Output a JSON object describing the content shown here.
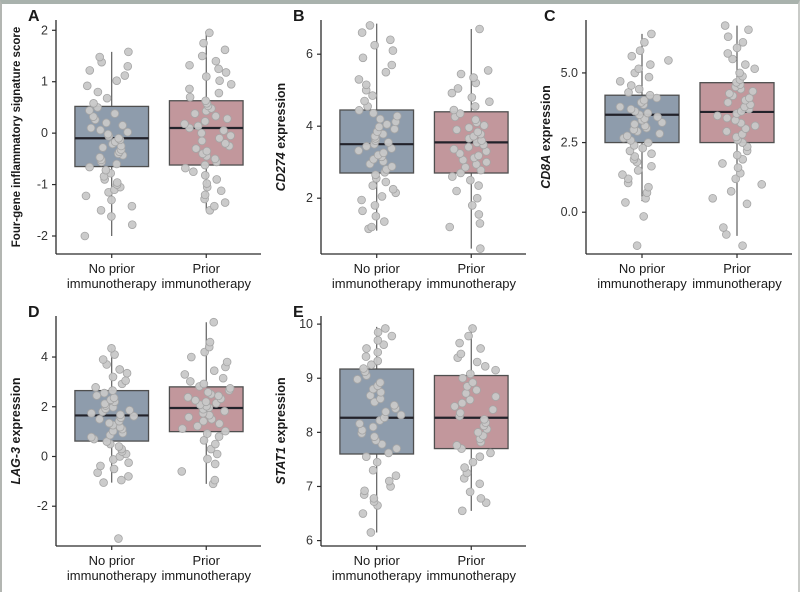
{
  "figure": {
    "frame_top_color": "#a9b2ad",
    "background": "#ffffff"
  },
  "colors": {
    "axis": "#2b2b2b",
    "tick_text": "#333333",
    "label_text": "#1a1a1a",
    "box_border": "#4f4f4f",
    "median": "#22222a",
    "point_fill": "#c8c8c8",
    "point_stroke": "#a5a5a5",
    "no_prior_fill": "#8e9cac",
    "prior_fill": "#c2979c"
  },
  "categories": [
    {
      "line1": "No prior",
      "line2": "immunotherapy"
    },
    {
      "line1": "Prior",
      "line2": "immunotherapy"
    }
  ],
  "chart_data": [
    {
      "panel": "A",
      "type": "box",
      "ylabel": {
        "italic": "",
        "text": "Four-gene inflammatory signature score"
      },
      "yticks": [
        -2,
        -1,
        0,
        1,
        2
      ],
      "ytick_labels": [
        "-2",
        "-1",
        "0",
        "1",
        "2"
      ],
      "ylim": [
        -2.35,
        2.2
      ],
      "series": [
        {
          "name": "No prior immunotherapy",
          "fill": "#8e9cac",
          "box": {
            "min": -2.0,
            "q1": -0.65,
            "median": -0.1,
            "q3": 0.52,
            "max": 1.58
          },
          "points": [
            -2.0,
            -1.78,
            -1.62,
            -1.5,
            -1.42,
            -1.3,
            -1.22,
            -1.15,
            -1.1,
            -1.05,
            -1.0,
            -0.96,
            -0.9,
            -0.84,
            -0.78,
            -0.72,
            -0.66,
            -0.6,
            -0.56,
            -0.52,
            -0.47,
            -0.43,
            -0.4,
            -0.36,
            -0.32,
            -0.28,
            -0.25,
            -0.21,
            -0.17,
            -0.13,
            -0.1,
            -0.06,
            -0.02,
            0.02,
            0.06,
            0.1,
            0.15,
            0.2,
            0.26,
            0.32,
            0.38,
            0.44,
            0.5,
            0.58,
            0.68,
            0.8,
            0.92,
            1.02,
            1.12,
            1.22,
            1.3,
            1.38,
            1.48,
            1.58
          ]
        },
        {
          "name": "Prior immunotherapy",
          "fill": "#c2979c",
          "box": {
            "min": -1.5,
            "q1": -0.62,
            "median": 0.1,
            "q3": 0.63,
            "max": 1.95
          },
          "points": [
            -1.5,
            -1.42,
            -1.35,
            -1.28,
            -1.2,
            -1.12,
            -1.05,
            -0.98,
            -0.9,
            -0.82,
            -0.75,
            -0.68,
            -0.62,
            -0.56,
            -0.5,
            -0.45,
            -0.4,
            -0.35,
            -0.3,
            -0.25,
            -0.2,
            -0.15,
            -0.1,
            -0.05,
            0.0,
            0.05,
            0.1,
            0.14,
            0.18,
            0.23,
            0.28,
            0.33,
            0.38,
            0.43,
            0.48,
            0.53,
            0.58,
            0.63,
            0.7,
            0.78,
            0.86,
            0.95,
            1.02,
            1.1,
            1.18,
            1.25,
            1.32,
            1.4,
            1.5,
            1.62,
            1.75,
            1.95
          ]
        }
      ]
    },
    {
      "panel": "B",
      "type": "box",
      "ylabel": {
        "italic": "CD274",
        "text": " expression"
      },
      "yticks": [
        2,
        4,
        6
      ],
      "ytick_labels": [
        "2",
        "4",
        "6"
      ],
      "ylim": [
        0.45,
        6.95
      ],
      "series": [
        {
          "name": "No prior immunotherapy",
          "fill": "#8e9cac",
          "box": {
            "min": 1.1,
            "q1": 2.7,
            "median": 3.5,
            "q3": 4.45,
            "max": 6.85
          },
          "points": [
            1.15,
            1.2,
            1.35,
            1.5,
            1.65,
            1.8,
            1.95,
            2.05,
            2.15,
            2.25,
            2.35,
            2.45,
            2.55,
            2.65,
            2.72,
            2.8,
            2.88,
            2.95,
            3.02,
            3.08,
            3.15,
            3.2,
            3.26,
            3.32,
            3.38,
            3.44,
            3.5,
            3.55,
            3.6,
            3.66,
            3.72,
            3.78,
            3.85,
            3.92,
            3.98,
            4.05,
            4.12,
            4.2,
            4.28,
            4.36,
            4.44,
            4.55,
            4.7,
            4.85,
            5.0,
            5.15,
            5.3,
            5.5,
            5.7,
            5.9,
            6.1,
            6.25,
            6.4,
            6.6,
            6.8
          ]
        },
        {
          "name": "Prior immunotherapy",
          "fill": "#c2979c",
          "box": {
            "min": 0.6,
            "q1": 2.7,
            "median": 3.55,
            "q3": 4.4,
            "max": 6.7
          },
          "points": [
            0.6,
            1.2,
            1.3,
            1.55,
            1.8,
            2.0,
            2.2,
            2.35,
            2.5,
            2.6,
            2.7,
            2.78,
            2.86,
            2.94,
            3.0,
            3.06,
            3.12,
            3.18,
            3.24,
            3.3,
            3.36,
            3.42,
            3.48,
            3.54,
            3.6,
            3.66,
            3.72,
            3.78,
            3.84,
            3.9,
            3.96,
            4.02,
            4.1,
            4.18,
            4.26,
            4.35,
            4.45,
            4.55,
            4.68,
            4.8,
            4.92,
            5.05,
            5.2,
            5.35,
            5.45,
            5.55,
            6.7
          ]
        }
      ]
    },
    {
      "panel": "C",
      "type": "box",
      "ylabel": {
        "italic": "CD8A",
        "text": " expression"
      },
      "yticks": [
        0.0,
        2.5,
        5.0
      ],
      "ytick_labels": [
        "0.0",
        "2.5",
        "5.0"
      ],
      "ylim": [
        -1.5,
        6.9
      ],
      "series": [
        {
          "name": "No prior immunotherapy",
          "fill": "#8e9cac",
          "box": {
            "min": 0.4,
            "q1": 2.5,
            "median": 3.5,
            "q3": 4.2,
            "max": 6.4
          },
          "points": [
            -1.2,
            -0.15,
            0.35,
            0.5,
            0.7,
            0.9,
            1.05,
            1.2,
            1.35,
            1.5,
            1.65,
            1.8,
            1.9,
            2.0,
            2.1,
            2.2,
            2.3,
            2.4,
            2.5,
            2.58,
            2.66,
            2.74,
            2.82,
            2.9,
            2.96,
            3.02,
            3.1,
            3.16,
            3.22,
            3.3,
            3.36,
            3.42,
            3.5,
            3.56,
            3.62,
            3.7,
            3.78,
            3.86,
            3.94,
            4.02,
            4.1,
            4.2,
            4.3,
            4.42,
            4.55,
            4.7,
            4.85,
            5.0,
            5.15,
            5.3,
            5.45,
            5.6,
            5.8,
            6.1,
            6.4
          ]
        },
        {
          "name": "Prior immunotherapy",
          "fill": "#c2979c",
          "box": {
            "min": -0.85,
            "q1": 2.5,
            "median": 3.6,
            "q3": 4.65,
            "max": 6.7
          },
          "points": [
            -1.2,
            -0.8,
            -0.55,
            0.3,
            0.5,
            0.75,
            1.0,
            1.2,
            1.4,
            1.6,
            1.75,
            1.9,
            2.05,
            2.2,
            2.35,
            2.5,
            2.6,
            2.7,
            2.8,
            2.9,
            3.0,
            3.1,
            3.2,
            3.3,
            3.38,
            3.46,
            3.54,
            3.62,
            3.7,
            3.78,
            3.86,
            3.94,
            4.02,
            4.1,
            4.18,
            4.26,
            4.34,
            4.42,
            4.5,
            4.58,
            4.66,
            4.76,
            4.88,
            5.0,
            5.15,
            5.3,
            5.5,
            5.7,
            5.9,
            6.1,
            6.3,
            6.55,
            6.7
          ]
        }
      ]
    },
    {
      "panel": "D",
      "type": "box",
      "ylabel": {
        "italic": "LAG-3",
        "text": " expression"
      },
      "yticks": [
        -2,
        0,
        2,
        4
      ],
      "ytick_labels": [
        "-2",
        "0",
        "2",
        "4"
      ],
      "ylim": [
        -3.6,
        5.65
      ],
      "series": [
        {
          "name": "No prior immunotherapy",
          "fill": "#8e9cac",
          "box": {
            "min": -1.05,
            "q1": 0.62,
            "median": 1.65,
            "q3": 2.65,
            "max": 4.35
          },
          "points": [
            -3.3,
            -1.05,
            -0.95,
            -0.8,
            -0.65,
            -0.5,
            -0.38,
            -0.25,
            -0.12,
            0.0,
            0.1,
            0.2,
            0.3,
            0.4,
            0.5,
            0.6,
            0.7,
            0.78,
            0.86,
            0.94,
            1.02,
            1.1,
            1.18,
            1.26,
            1.34,
            1.42,
            1.5,
            1.56,
            1.62,
            1.68,
            1.74,
            1.8,
            1.86,
            1.92,
            1.98,
            2.05,
            2.12,
            2.2,
            2.28,
            2.36,
            2.45,
            2.55,
            2.65,
            2.78,
            2.92,
            3.05,
            3.2,
            3.35,
            3.5,
            3.7,
            3.9,
            4.1,
            4.35
          ]
        },
        {
          "name": "Prior immunotherapy",
          "fill": "#c2979c",
          "box": {
            "min": -1.1,
            "q1": 1.0,
            "median": 1.95,
            "q3": 2.8,
            "max": 5.4
          },
          "points": [
            -1.1,
            -0.95,
            -0.6,
            -0.3,
            -0.1,
            0.1,
            0.3,
            0.5,
            0.65,
            0.8,
            0.92,
            1.02,
            1.12,
            1.22,
            1.32,
            1.42,
            1.5,
            1.58,
            1.66,
            1.74,
            1.82,
            1.9,
            1.96,
            2.02,
            2.08,
            2.14,
            2.2,
            2.26,
            2.32,
            2.38,
            2.44,
            2.5,
            2.58,
            2.66,
            2.74,
            2.82,
            2.92,
            3.02,
            3.15,
            3.3,
            3.45,
            3.6,
            3.8,
            4.0,
            4.2,
            4.4,
            4.6,
            5.4
          ]
        }
      ]
    },
    {
      "panel": "E",
      "type": "box",
      "ylabel": {
        "italic": "STAT1",
        "text": " expression"
      },
      "yticks": [
        6,
        7,
        8,
        9,
        10
      ],
      "ytick_labels": [
        "6",
        "7",
        "8",
        "9",
        "10"
      ],
      "ylim": [
        5.9,
        10.15
      ],
      "series": [
        {
          "name": "No prior immunotherapy",
          "fill": "#8e9cac",
          "box": {
            "min": 6.15,
            "q1": 7.6,
            "median": 8.27,
            "q3": 9.17,
            "max": 9.95
          },
          "points": [
            6.15,
            6.5,
            6.65,
            6.72,
            6.78,
            6.85,
            6.92,
            7.0,
            7.1,
            7.2,
            7.3,
            7.45,
            7.55,
            7.62,
            7.7,
            7.78,
            7.85,
            7.92,
            7.98,
            8.04,
            8.1,
            8.16,
            8.22,
            8.27,
            8.32,
            8.38,
            8.44,
            8.5,
            8.56,
            8.62,
            8.68,
            8.74,
            8.8,
            8.86,
            8.92,
            8.98,
            9.05,
            9.12,
            9.18,
            9.25,
            9.32,
            9.4,
            9.48,
            9.55,
            9.62,
            9.7,
            9.78,
            9.85,
            9.92
          ]
        },
        {
          "name": "Prior immunotherapy",
          "fill": "#c2979c",
          "box": {
            "min": 6.55,
            "q1": 7.7,
            "median": 8.27,
            "q3": 9.05,
            "max": 9.95
          },
          "points": [
            6.55,
            6.7,
            6.78,
            6.9,
            7.05,
            7.15,
            7.25,
            7.35,
            7.45,
            7.55,
            7.62,
            7.7,
            7.76,
            7.82,
            7.88,
            7.94,
            8.0,
            8.06,
            8.12,
            8.18,
            8.24,
            8.3,
            8.36,
            8.42,
            8.48,
            8.54,
            8.6,
            8.66,
            8.72,
            8.78,
            8.85,
            8.92,
            9.0,
            9.08,
            9.15,
            9.22,
            9.3,
            9.38,
            9.45,
            9.55,
            9.65,
            9.78,
            9.92
          ]
        }
      ]
    }
  ]
}
